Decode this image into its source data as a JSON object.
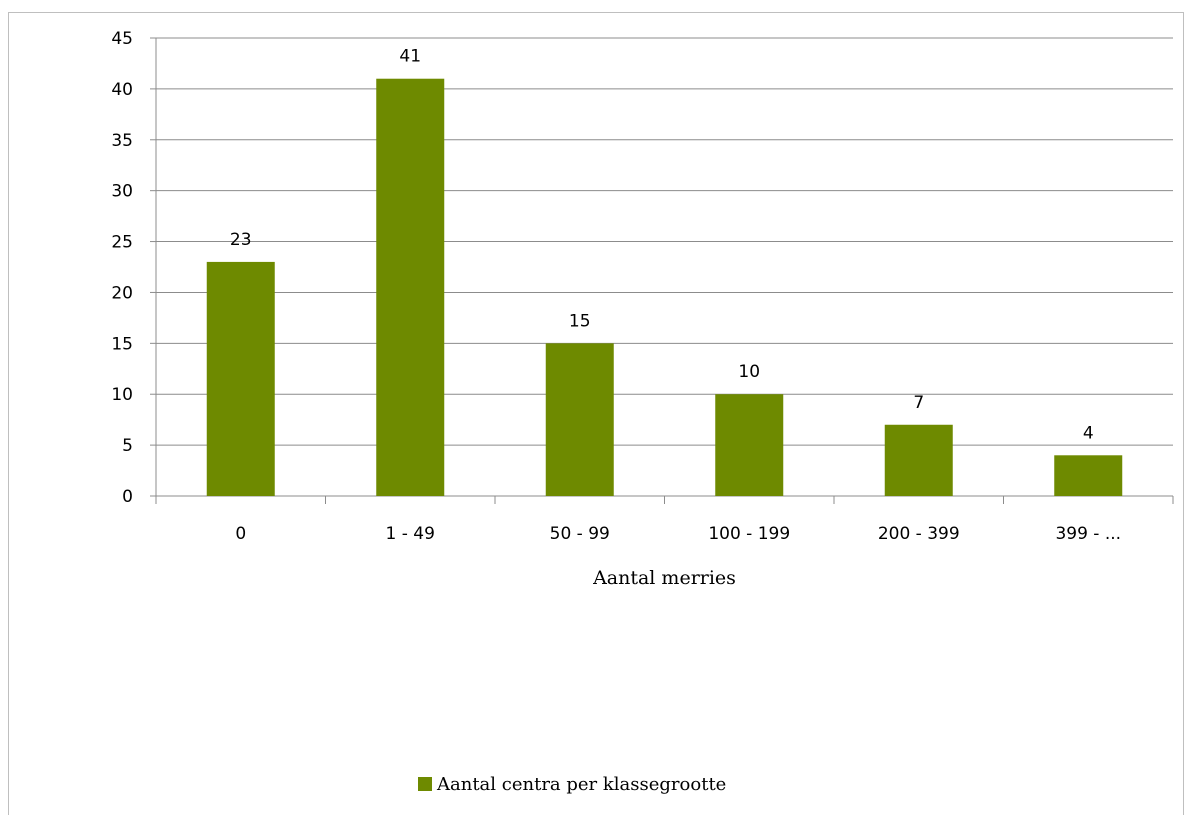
{
  "chart_data": {
    "type": "bar",
    "categories": [
      "0",
      "1 - 49",
      "50 - 99",
      "100 - 199",
      "200 - 399",
      "399 - ..."
    ],
    "series": [
      {
        "name": "Aantal centra per klassegrootte",
        "values": [
          23,
          41,
          15,
          10,
          7,
          4
        ],
        "color": "#6e8a00"
      }
    ],
    "xlabel": "Aantal merries",
    "ylabel": "",
    "ylim": [
      0,
      45
    ],
    "ytick_step": 5,
    "grid": true,
    "data_labels": true,
    "legend": "bottom"
  },
  "colors": {
    "bar": "#6e8a00",
    "grid": "#8c8c8c",
    "axis": "#8c8c8c"
  }
}
